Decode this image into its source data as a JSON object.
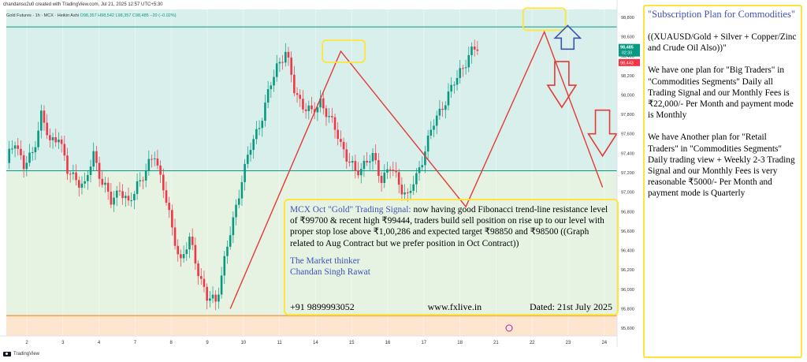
{
  "header": {
    "credit": "chandanso2u0 created with TradingView.com, Jul 21, 2025 12:57 UTC+5:30",
    "legend_prefix": "Gold Futures · 1h · MCX · Heikin Ashi",
    "legend_values": "O98,357  H98,542  L98,357  C98,485  −20 (−0.02%)"
  },
  "price_axis": {
    "labels": [
      "98,800",
      "98,600",
      "98,400",
      "98,200",
      "98,000",
      "97,800",
      "97,600",
      "97,400",
      "97,200",
      "97,000",
      "96,800",
      "96,600",
      "96,400",
      "96,200",
      "96,000",
      "95,800",
      "95,600"
    ],
    "last_price": "98,485",
    "countdown": "02:33",
    "prev_close": "98,443",
    "colors": {
      "last": "#089981",
      "prev": "#f23645"
    }
  },
  "time_axis": {
    "labels": [
      "2",
      "3",
      "4",
      "7",
      "8",
      "9",
      "10",
      "11",
      "14",
      "15",
      "16",
      "17",
      "18",
      "21",
      "22",
      "23",
      "24"
    ]
  },
  "message_box": {
    "title": "MCX Oct \"Gold\" Trading Signal:",
    "body": " now having good Fibonacci trend-line resistance level of ₹99700 & recent high ₹99444, traders build sell position on rise up to our level with proper stop lose above ₹1,00,286 and expected target ₹98850 and ₹98500 ((Graph related to Aug Contract but we prefer position in Oct Contract))",
    "signature_1": "The Market thinker",
    "signature_2": "Chandan Singh Rawat",
    "phone": "+91 9899993052",
    "website": "www.fxlive.in",
    "date": "Dated: 21st July 2025"
  },
  "side_panel": {
    "title": "\"Subscription Plan for Commodities\"",
    "p1": "((XUAUSD/Gold + Silver + Copper/Zinc and Crude Oil Also))\"",
    "p2": "We have one plan for \"Big Traders\"  in \"Commodities Segments\" Daily all Trading Signal and our Monthly Fees is ₹22,000/- Per Month and payment mode is Monthly",
    "p3": "We have Another plan for \"Retail Traders\"  in \"Commodities Segments\" Daily trading view + Weekly 2-3 Trading Signal and our Monthly Fees is very reasonable ₹5000/- Per Month and payment mode is Quarterly"
  },
  "footer": {
    "brand": "TradingView"
  },
  "chart_data": {
    "type": "candlestick",
    "title": "",
    "ylim": [
      95520,
      98880
    ],
    "x_day_labels": [
      "2",
      "3",
      "4",
      "7",
      "8",
      "9",
      "10",
      "11",
      "14",
      "15",
      "16",
      "17",
      "18",
      "21",
      "22",
      "23",
      "24"
    ],
    "horizontal_levels": [
      {
        "value": 98700,
        "color": "#089981"
      },
      {
        "value": 97220,
        "color": "#089981"
      },
      {
        "value": 95730,
        "color": "#f57c00"
      }
    ],
    "zones": [
      {
        "from": 97220,
        "to": 98880,
        "color": "#d9efec"
      },
      {
        "from": 95730,
        "to": 97220,
        "color": "#e6f3e3"
      },
      {
        "from": 95520,
        "to": 95730,
        "color": "#fde5cf"
      }
    ],
    "close_path": [
      [
        0,
        97300
      ],
      [
        3,
        97550
      ],
      [
        6,
        97250
      ],
      [
        9,
        97400
      ],
      [
        12,
        97800
      ],
      [
        15,
        97500
      ],
      [
        18,
        97600
      ],
      [
        21,
        97200
      ],
      [
        24,
        97150
      ],
      [
        27,
        97050
      ],
      [
        30,
        97400
      ],
      [
        33,
        97100
      ],
      [
        36,
        96900
      ],
      [
        39,
        97050
      ],
      [
        42,
        96850
      ],
      [
        45,
        97100
      ],
      [
        48,
        97200
      ],
      [
        51,
        97400
      ],
      [
        54,
        97050
      ],
      [
        57,
        96600
      ],
      [
        60,
        96300
      ],
      [
        63,
        96500
      ],
      [
        66,
        96200
      ],
      [
        69,
        95900
      ],
      [
        72,
        95880
      ],
      [
        75,
        96300
      ],
      [
        78,
        96700
      ],
      [
        81,
        97150
      ],
      [
        84,
        97450
      ],
      [
        87,
        97700
      ],
      [
        90,
        98000
      ],
      [
        93,
        98300
      ],
      [
        96,
        98450
      ],
      [
        99,
        98050
      ],
      [
        102,
        97900
      ],
      [
        105,
        97800
      ],
      [
        108,
        97950
      ],
      [
        111,
        97750
      ],
      [
        114,
        97600
      ],
      [
        117,
        97350
      ],
      [
        120,
        97200
      ],
      [
        123,
        97300
      ],
      [
        126,
        97350
      ],
      [
        129,
        97150
      ],
      [
        132,
        97250
      ],
      [
        135,
        97100
      ],
      [
        138,
        96950
      ],
      [
        141,
        97150
      ],
      [
        144,
        97450
      ],
      [
        147,
        97700
      ],
      [
        150,
        97900
      ],
      [
        153,
        98050
      ],
      [
        156,
        98250
      ],
      [
        159,
        98400
      ],
      [
        162,
        98485
      ]
    ],
    "annotations": [
      {
        "type": "trendline",
        "points": [
          [
            77,
            95800
          ],
          [
            115,
            98450
          ],
          [
            158,
            96850
          ],
          [
            185,
            98650
          ],
          [
            205,
            97050
          ]
        ],
        "color": "#e53935"
      },
      {
        "type": "box",
        "at": [
          116,
          98450
        ],
        "color": "#ffe53b"
      },
      {
        "type": "box",
        "at": [
          185,
          98780
        ],
        "color": "#ffe53b"
      },
      {
        "type": "arrow-up",
        "at": [
          193,
          98650
        ],
        "color": "#3f51b5"
      },
      {
        "type": "arrow-down",
        "at": [
          191,
          98100
        ],
        "color": "#e53935"
      },
      {
        "type": "arrow-down",
        "at": [
          205,
          97600
        ],
        "color": "#e53935"
      }
    ]
  }
}
